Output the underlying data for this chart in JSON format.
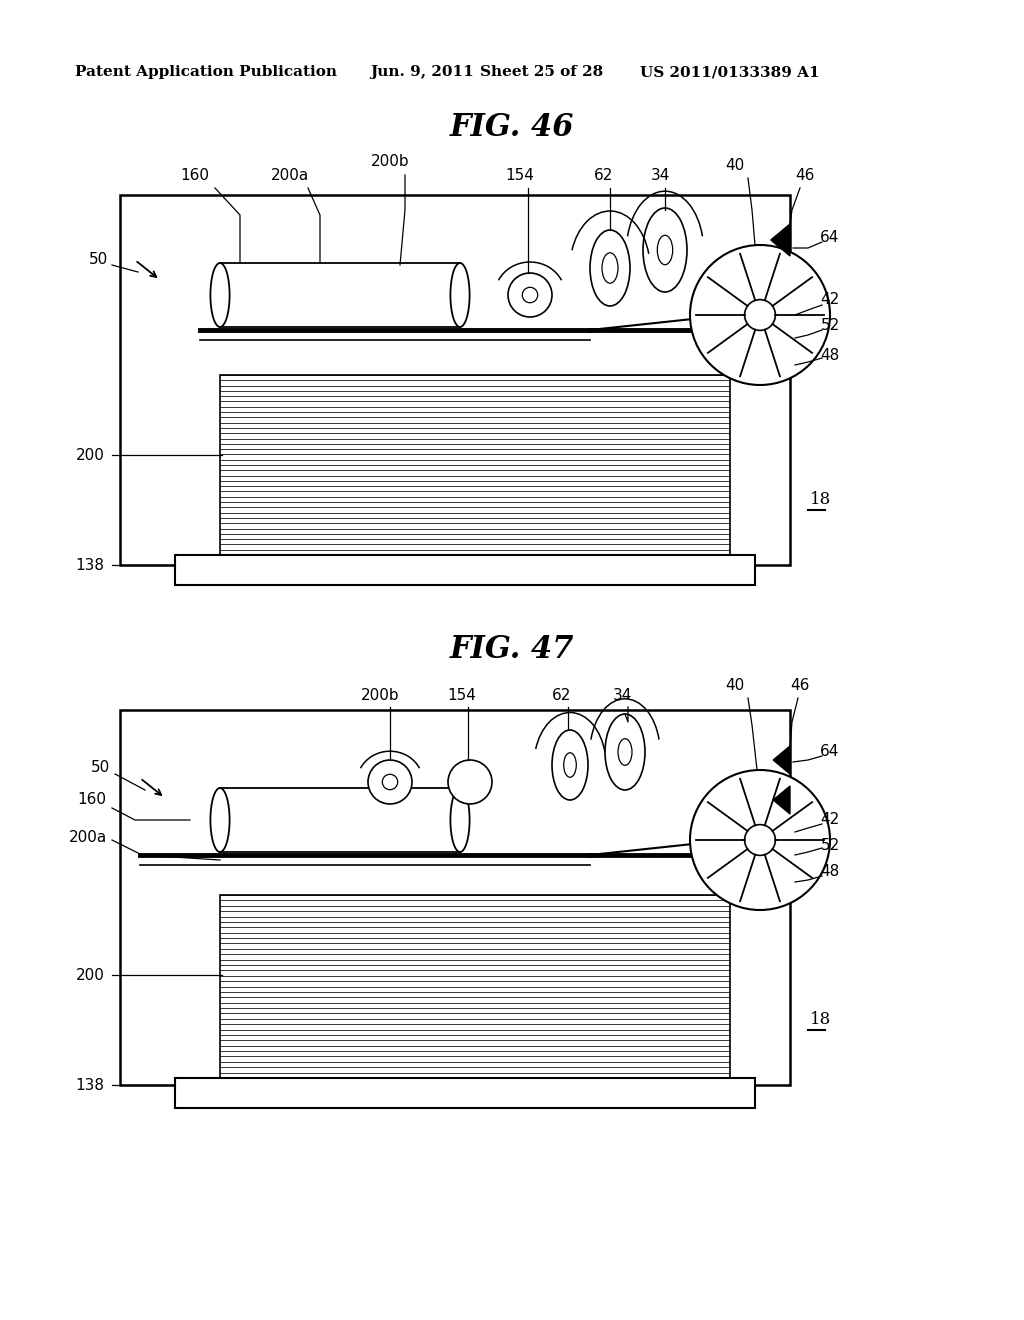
{
  "bg_color": "#ffffff",
  "header_text": "Patent Application Publication",
  "header_date": "Jun. 9, 2011",
  "header_sheet": "Sheet 25 of 28",
  "header_patent": "US 2011/0133389 A1",
  "fig46_title": "FIG. 46",
  "fig47_title": "FIG. 47",
  "fig_title_fontsize": 22,
  "header_fontsize": 11,
  "label_fontsize": 11
}
